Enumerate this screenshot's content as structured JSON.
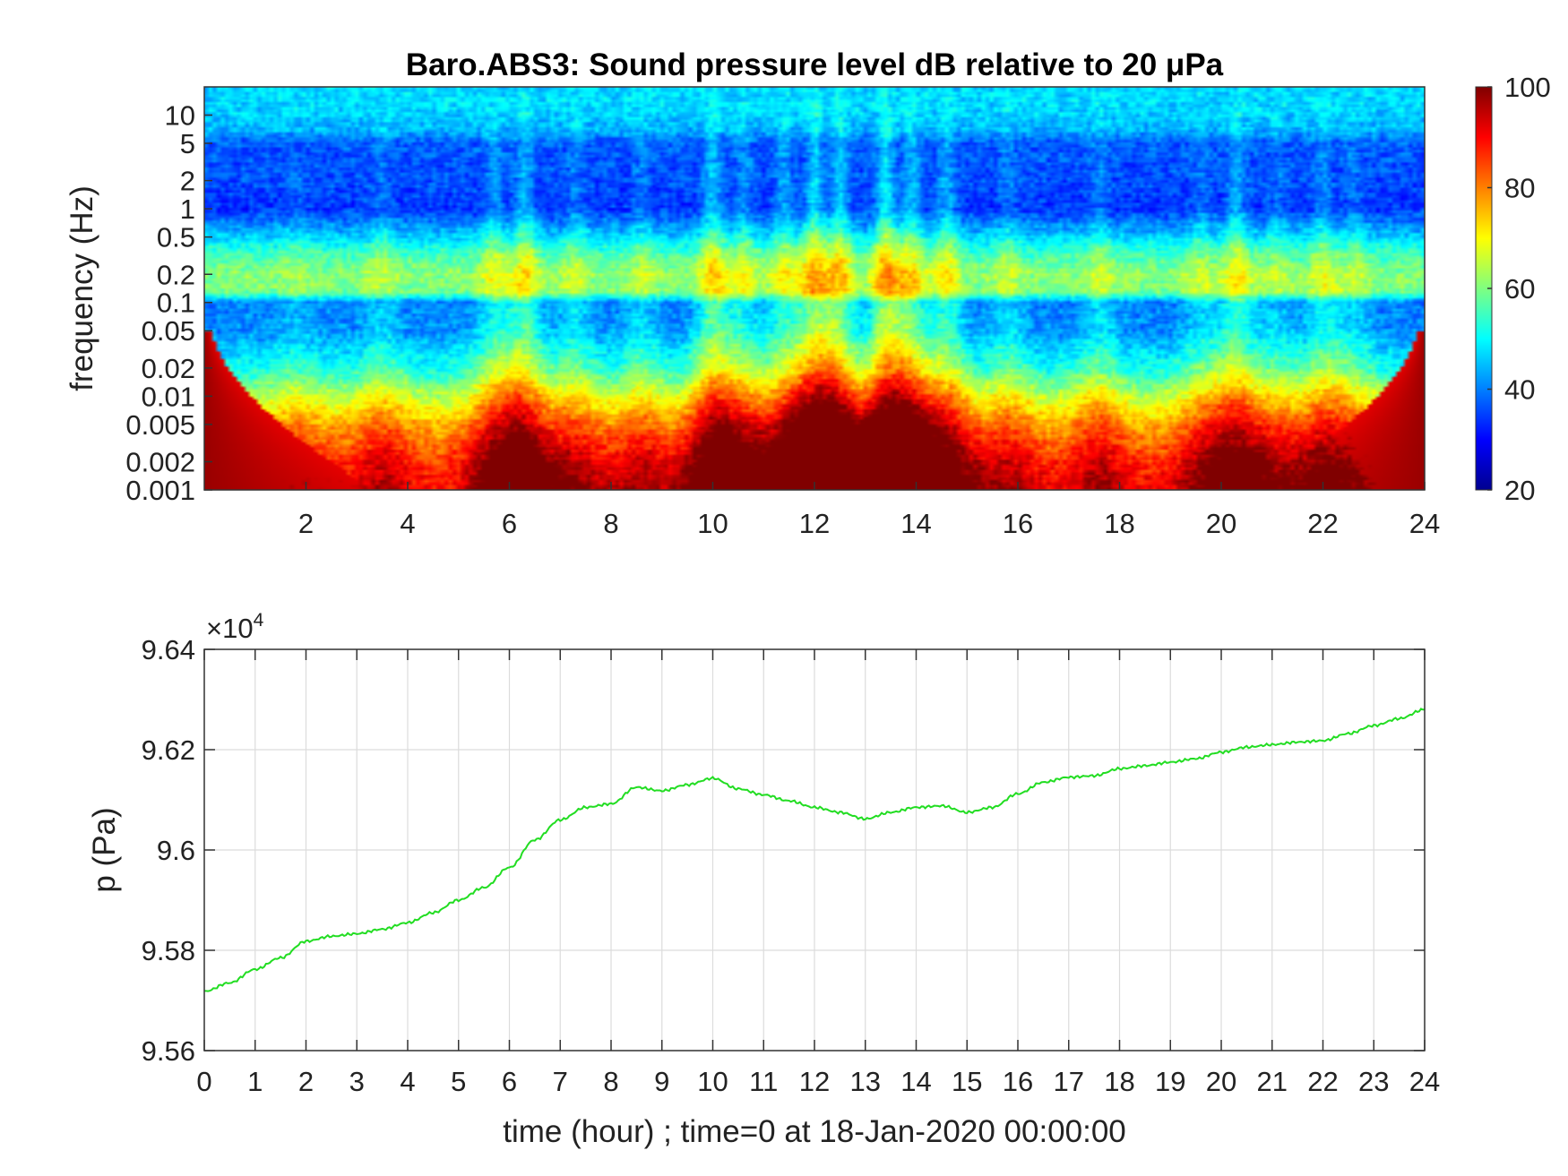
{
  "chart_data": [
    {
      "type": "heatmap",
      "title": "Baro.ABS3: Sound pressure level dB relative to 20 μPa",
      "ylabel": "frequency (Hz)",
      "xlabel": "",
      "xlim": [
        0,
        24
      ],
      "ylim": [
        0.001,
        20
      ],
      "y_scale": "log",
      "x_ticks": [
        2,
        4,
        6,
        8,
        10,
        12,
        14,
        16,
        18,
        20,
        22,
        24
      ],
      "x_tick_labels": [
        "2",
        "4",
        "6",
        "8",
        "10",
        "12",
        "14",
        "16",
        "18",
        "20",
        "22",
        "24"
      ],
      "y_ticks": [
        10,
        5,
        2,
        1,
        0.5,
        0.2,
        0.1,
        0.05,
        0.02,
        0.01,
        0.005,
        0.002,
        0.001
      ],
      "y_tick_labels": [
        "10",
        "5",
        "2",
        "1",
        "0.5",
        "0.2",
        "0.1",
        "0.05",
        "0.02",
        "0.01",
        "0.005",
        "0.002",
        "0.001"
      ],
      "colorbar": {
        "colormap": "jet",
        "range": [
          20,
          100
        ],
        "ticks": [
          20,
          40,
          60,
          80,
          100
        ],
        "tick_labels": [
          "20",
          "40",
          "60",
          "80",
          "100"
        ]
      },
      "background_levels": [
        {
          "f": 20,
          "db": 47
        },
        {
          "f": 12,
          "db": 47
        },
        {
          "f": 7,
          "db": 44
        },
        {
          "f": 5,
          "db": 37
        },
        {
          "f": 2,
          "db": 36
        },
        {
          "f": 1,
          "db": 34
        },
        {
          "f": 0.6,
          "db": 43
        },
        {
          "f": 0.35,
          "db": 54
        },
        {
          "f": 0.2,
          "db": 61
        },
        {
          "f": 0.13,
          "db": 59
        },
        {
          "f": 0.1,
          "db": 40
        },
        {
          "f": 0.05,
          "db": 41
        },
        {
          "f": 0.02,
          "db": 51
        },
        {
          "f": 0.01,
          "db": 64
        },
        {
          "f": 0.005,
          "db": 75
        },
        {
          "f": 0.002,
          "db": 85
        },
        {
          "f": 0.001,
          "db": 88
        }
      ],
      "activity_bursts": [
        {
          "t": 1.8,
          "amp": 5
        },
        {
          "t": 3.5,
          "amp": 8
        },
        {
          "t": 5.7,
          "amp": 14
        },
        {
          "t": 6.3,
          "amp": 20
        },
        {
          "t": 7.3,
          "amp": 10
        },
        {
          "t": 8.6,
          "amp": 9
        },
        {
          "t": 10.0,
          "amp": 22
        },
        {
          "t": 10.6,
          "amp": 14
        },
        {
          "t": 11.4,
          "amp": 16
        },
        {
          "t": 12.0,
          "amp": 28
        },
        {
          "t": 12.5,
          "amp": 24
        },
        {
          "t": 13.4,
          "amp": 30
        },
        {
          "t": 13.9,
          "amp": 22
        },
        {
          "t": 14.6,
          "amp": 18
        },
        {
          "t": 15.8,
          "amp": 9
        },
        {
          "t": 17.6,
          "amp": 10
        },
        {
          "t": 19.6,
          "amp": 9
        },
        {
          "t": 20.3,
          "amp": 18
        },
        {
          "t": 21.1,
          "amp": 8
        },
        {
          "t": 22.0,
          "amp": 13
        },
        {
          "t": 22.6,
          "amp": 8
        }
      ]
    },
    {
      "type": "line",
      "xlabel": "time (hour) ; time=0 at 18-Jan-2020 00:00:00",
      "ylabel": "p (Pa)",
      "xlim": [
        0,
        24
      ],
      "ylim": [
        95600,
        96400
      ],
      "y_multiplier_label": "×10",
      "y_multiplier_exponent": "4",
      "grid": true,
      "line_color": "#22dd22",
      "x_ticks": [
        0,
        1,
        2,
        3,
        4,
        5,
        6,
        7,
        8,
        9,
        10,
        11,
        12,
        13,
        14,
        15,
        16,
        17,
        18,
        19,
        20,
        21,
        22,
        23,
        24
      ],
      "x_tick_labels": [
        "0",
        "1",
        "2",
        "3",
        "4",
        "5",
        "6",
        "7",
        "8",
        "9",
        "10",
        "11",
        "12",
        "13",
        "14",
        "15",
        "16",
        "17",
        "18",
        "19",
        "20",
        "21",
        "22",
        "23",
        "24"
      ],
      "y_ticks": [
        95600,
        95800,
        96000,
        96200,
        96400
      ],
      "y_tick_labels": [
        "9.56",
        "9.58",
        "9.6",
        "9.62",
        "9.64"
      ],
      "series": [
        {
          "x": [
            0,
            0.5,
            1,
            1.5,
            2,
            2.5,
            3,
            3.5,
            4,
            4.5,
            5,
            5.5,
            6,
            6.5,
            7,
            7.5,
            8,
            8.5,
            9,
            9.5,
            10,
            10.5,
            11,
            11.5,
            12,
            12.5,
            13,
            13.5,
            14,
            14.5,
            15,
            15.5,
            16,
            16.5,
            17,
            17.5,
            18,
            18.5,
            19,
            19.5,
            20,
            20.5,
            21,
            21.5,
            22,
            22.5,
            23,
            23.5,
            24
          ],
          "y": [
            95718,
            95735,
            95762,
            95785,
            95818,
            95828,
            95833,
            95842,
            95855,
            95875,
            95900,
            95925,
            95965,
            96020,
            96060,
            96085,
            96092,
            96125,
            96118,
            96130,
            96143,
            96122,
            96110,
            96098,
            96085,
            96075,
            96062,
            96075,
            96085,
            96088,
            96075,
            96085,
            96112,
            96135,
            96145,
            96148,
            96162,
            96168,
            96175,
            96182,
            96195,
            96205,
            96210,
            96215,
            96218,
            96232,
            96248,
            96262,
            96280
          ]
        }
      ]
    }
  ]
}
